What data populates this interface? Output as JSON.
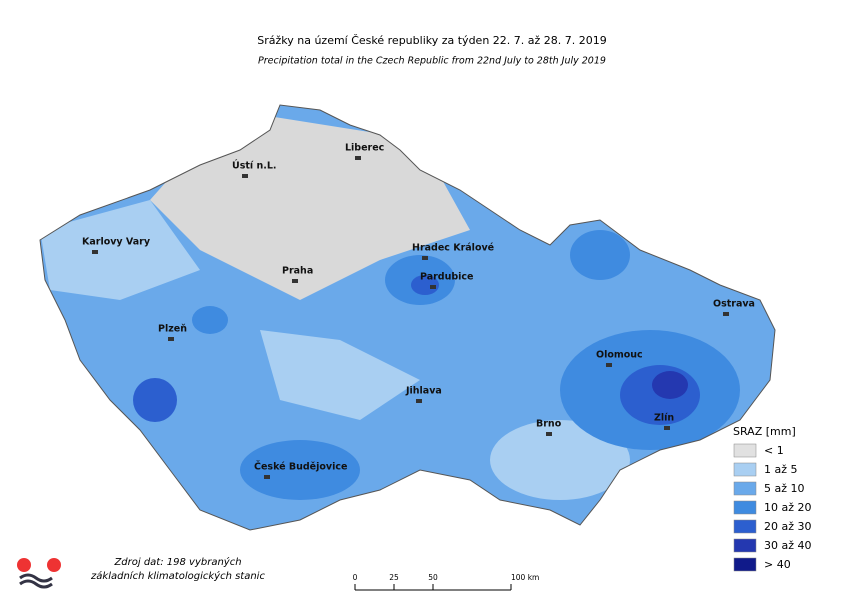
{
  "header": {
    "title": "Srážky na území České republiky za týden 22. 7. až 28. 7. 2019",
    "subtitle": "Precipitation total in the Czech Republic from 22nd July to 28th July 2019"
  },
  "cities": [
    "Liberec",
    "Ústí n.L.",
    "Karlovy Vary",
    "Hradec Králové",
    "Pardubice",
    "Praha",
    "Ostrava",
    "Plzeň",
    "Olomouc",
    "Jihlava",
    "Brno",
    "Zlín",
    "České Budějovice"
  ],
  "legend": {
    "title": "SRAZ [mm]",
    "items": [
      {
        "label": "< 1",
        "color": "#e1e1e1"
      },
      {
        "label": "1 až 5",
        "color": "#a9cff2"
      },
      {
        "label": "5 až 10",
        "color": "#6aa9ea"
      },
      {
        "label": "10 až 20",
        "color": "#3f8be0"
      },
      {
        "label": "20 až 30",
        "color": "#2c5fcf"
      },
      {
        "label": "30 až 40",
        "color": "#2438b0"
      },
      {
        "label": "> 40",
        "color": "#101a8a"
      }
    ]
  },
  "source": [
    "Zdroj dat: 198 vybraných",
    "základních klimatologických stanic"
  ],
  "scale": {
    "ticks": [
      0,
      25,
      50,
      {
        "value": 100,
        "label": "100 km"
      }
    ]
  }
}
